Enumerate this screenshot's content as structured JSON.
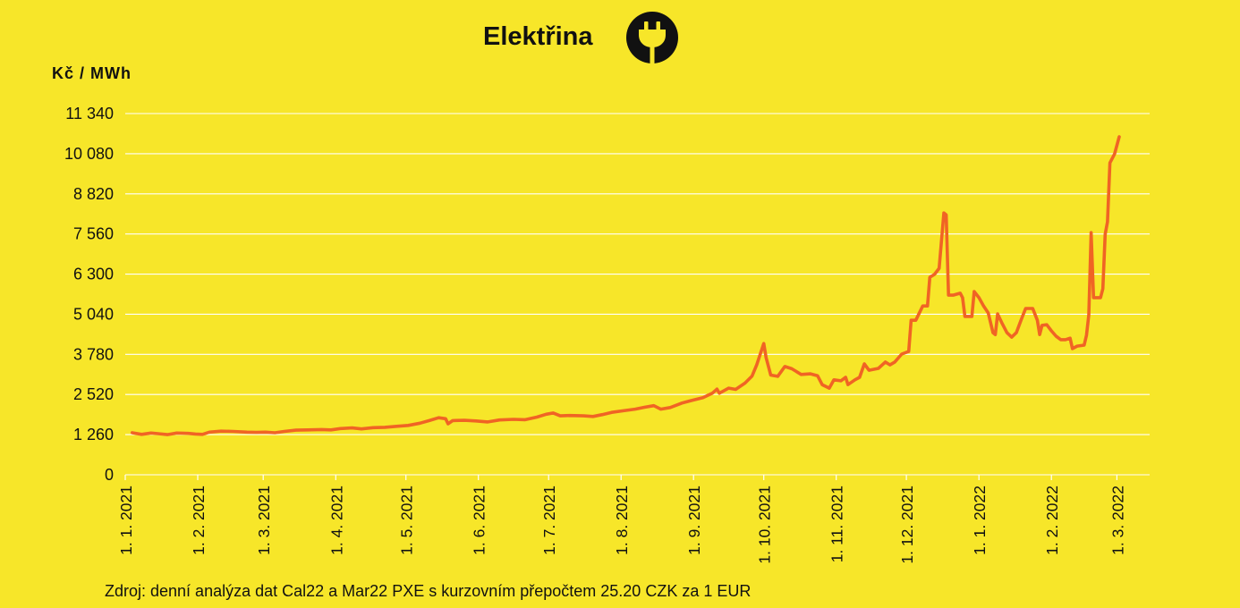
{
  "chart_data": {
    "type": "line",
    "title": "Elektřina",
    "ylabel": "Kč / MWh",
    "source": "Zdroj: denní analýza dat Cal22 a Mar22 PXE s kurzovním přepočtem 25.20 CZK za 1 EUR",
    "xlim": [
      "2021-01-01",
      "2022-03-15"
    ],
    "ylim": [
      0,
      11340
    ],
    "yticks": [
      0,
      1260,
      2520,
      3780,
      5040,
      6300,
      7560,
      8820,
      10080,
      11340
    ],
    "ytick_labels": [
      "0",
      "1 260",
      "2 520",
      "3 780",
      "5 040",
      "6 300",
      "7 560",
      "8 820",
      "10 080",
      "11 340"
    ],
    "xtick_labels": [
      "1. 1. 2021",
      "1. 2. 2021",
      "1. 3. 2021",
      "1. 4. 2021",
      "1. 5. 2021",
      "1. 6. 2021",
      "1. 7. 2021",
      "1. 8. 2021",
      "1. 9. 2021",
      "1. 10. 2021",
      "1. 11. 2021",
      "1. 12. 2021",
      "1. 1. 2022",
      "1. 2. 2022",
      "1. 3. 2022"
    ],
    "grid": true,
    "x": [
      "2021-01-04",
      "2021-01-08",
      "2021-01-12",
      "2021-01-15",
      "2021-01-19",
      "2021-01-23",
      "2021-01-28",
      "2021-01-31",
      "2021-02-03",
      "2021-02-06",
      "2021-02-11",
      "2021-02-16",
      "2021-02-22",
      "2021-02-26",
      "2021-03-02",
      "2021-03-06",
      "2021-03-10",
      "2021-03-15",
      "2021-03-20",
      "2021-03-26",
      "2021-03-30",
      "2021-04-03",
      "2021-04-08",
      "2021-04-12",
      "2021-04-17",
      "2021-04-22",
      "2021-04-27",
      "2021-05-02",
      "2021-05-07",
      "2021-05-11",
      "2021-05-15",
      "2021-05-18",
      "2021-05-19",
      "2021-05-21",
      "2021-05-26",
      "2021-05-31",
      "2021-06-05",
      "2021-06-10",
      "2021-06-16",
      "2021-06-21",
      "2021-06-26",
      "2021-06-30",
      "2021-07-03",
      "2021-07-06",
      "2021-07-10",
      "2021-07-16",
      "2021-07-20",
      "2021-07-24",
      "2021-07-28",
      "2021-08-02",
      "2021-08-07",
      "2021-08-11",
      "2021-08-15",
      "2021-08-18",
      "2021-08-22",
      "2021-08-27",
      "2021-08-31",
      "2021-09-05",
      "2021-09-09",
      "2021-09-11",
      "2021-09-12",
      "2021-09-16",
      "2021-09-19",
      "2021-09-23",
      "2021-09-26",
      "2021-09-28",
      "2021-10-01",
      "2021-10-02",
      "2021-10-04",
      "2021-10-07",
      "2021-10-10",
      "2021-10-13",
      "2021-10-17",
      "2021-10-21",
      "2021-10-24",
      "2021-10-26",
      "2021-10-29",
      "2021-10-31",
      "2021-11-03",
      "2021-11-05",
      "2021-11-06",
      "2021-11-09",
      "2021-11-11",
      "2021-11-13",
      "2021-11-15",
      "2021-11-19",
      "2021-11-22",
      "2021-11-24",
      "2021-11-26",
      "2021-11-29",
      "2021-12-02",
      "2021-12-03",
      "2021-12-05",
      "2021-12-08",
      "2021-12-10",
      "2021-12-11",
      "2021-12-13",
      "2021-12-15",
      "2021-12-17",
      "2021-12-18",
      "2021-12-19",
      "2021-12-21",
      "2021-12-24",
      "2021-12-25",
      "2021-12-26",
      "2021-12-29",
      "2021-12-30",
      "2022-01-01",
      "2022-01-03",
      "2022-01-05",
      "2022-01-07",
      "2022-01-08",
      "2022-01-09",
      "2022-01-11",
      "2022-01-13",
      "2022-01-15",
      "2022-01-17",
      "2022-01-19",
      "2022-01-21",
      "2022-01-24",
      "2022-01-26",
      "2022-01-27",
      "2022-01-28",
      "2022-01-30",
      "2022-02-01",
      "2022-02-03",
      "2022-02-05",
      "2022-02-07",
      "2022-02-09",
      "2022-02-10",
      "2022-02-12",
      "2022-02-15",
      "2022-02-16",
      "2022-02-17",
      "2022-02-18",
      "2022-02-19",
      "2022-02-22",
      "2022-02-23",
      "2022-02-24",
      "2022-02-25",
      "2022-02-26",
      "2022-02-28",
      "2022-03-02"
    ],
    "series": [
      {
        "color": "#f06424",
        "values": [
          1320,
          1270,
          1310,
          1290,
          1260,
          1310,
          1300,
          1280,
          1270,
          1340,
          1370,
          1360,
          1340,
          1330,
          1340,
          1320,
          1360,
          1400,
          1410,
          1420,
          1410,
          1450,
          1470,
          1440,
          1480,
          1490,
          1520,
          1550,
          1620,
          1700,
          1790,
          1760,
          1600,
          1700,
          1710,
          1690,
          1660,
          1720,
          1740,
          1730,
          1810,
          1900,
          1940,
          1850,
          1860,
          1850,
          1830,
          1890,
          1960,
          2010,
          2060,
          2120,
          2170,
          2060,
          2110,
          2250,
          2330,
          2420,
          2560,
          2690,
          2560,
          2720,
          2680,
          2880,
          3100,
          3450,
          4120,
          3680,
          3130,
          3090,
          3400,
          3330,
          3150,
          3170,
          3110,
          2830,
          2720,
          2980,
          2950,
          3060,
          2830,
          2980,
          3060,
          3480,
          3280,
          3340,
          3540,
          3450,
          3540,
          3790,
          3870,
          4850,
          4850,
          5300,
          5300,
          6200,
          6290,
          6480,
          8220,
          8160,
          5640,
          5640,
          5700,
          5560,
          4970,
          4970,
          5750,
          5560,
          5300,
          5080,
          4460,
          4400,
          5050,
          4740,
          4460,
          4320,
          4460,
          4850,
          5220,
          5220,
          4850,
          4400,
          4690,
          4710,
          4520,
          4350,
          4240,
          4240,
          4290,
          3960,
          4040,
          4070,
          4380,
          5020,
          7600,
          5560,
          5560,
          5840,
          7550,
          7940,
          9790,
          10070,
          10610
        ]
      }
    ]
  },
  "header": {
    "icon": "plug-icon"
  },
  "colors": {
    "background": "#f7e629",
    "line": "#f06424",
    "grid": "#ffffff",
    "text": "#111111"
  }
}
